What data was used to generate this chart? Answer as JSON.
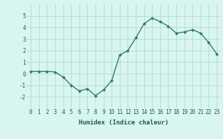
{
  "x": [
    0,
    1,
    2,
    3,
    4,
    5,
    6,
    7,
    8,
    9,
    10,
    11,
    12,
    13,
    14,
    15,
    16,
    17,
    18,
    19,
    20,
    21,
    22,
    23
  ],
  "y": [
    0.2,
    0.2,
    0.2,
    0.15,
    -0.3,
    -1.0,
    -1.5,
    -1.3,
    -1.9,
    -1.4,
    -0.6,
    1.6,
    2.0,
    3.1,
    4.3,
    4.8,
    4.5,
    4.1,
    3.5,
    3.6,
    3.8,
    3.5,
    2.7,
    1.7
  ],
  "line_color": "#2e7d6e",
  "marker": "D",
  "marker_size": 2,
  "bg_color": "#d8f5f0",
  "grid_color": "#b5d8d2",
  "xlabel": "Humidex (Indice chaleur)",
  "xlabel_color": "#1a5c50",
  "tick_color": "#1a5c50",
  "ylim": [
    -3,
    6
  ],
  "xlim": [
    -0.5,
    23.5
  ],
  "yticks": [
    -2,
    -1,
    0,
    1,
    2,
    3,
    4,
    5
  ],
  "xticks": [
    0,
    1,
    2,
    3,
    4,
    5,
    6,
    7,
    8,
    9,
    10,
    11,
    12,
    13,
    14,
    15,
    16,
    17,
    18,
    19,
    20,
    21,
    22,
    23
  ],
  "xtick_labels": [
    "0",
    "1",
    "2",
    "3",
    "4",
    "5",
    "6",
    "7",
    "8",
    "9",
    "10",
    "11",
    "12",
    "13",
    "14",
    "15",
    "16",
    "17",
    "18",
    "19",
    "20",
    "21",
    "22",
    "23"
  ],
  "line_width": 1.0,
  "font_family": "monospace",
  "xlabel_fontsize": 6.5,
  "tick_fontsize": 5.5
}
